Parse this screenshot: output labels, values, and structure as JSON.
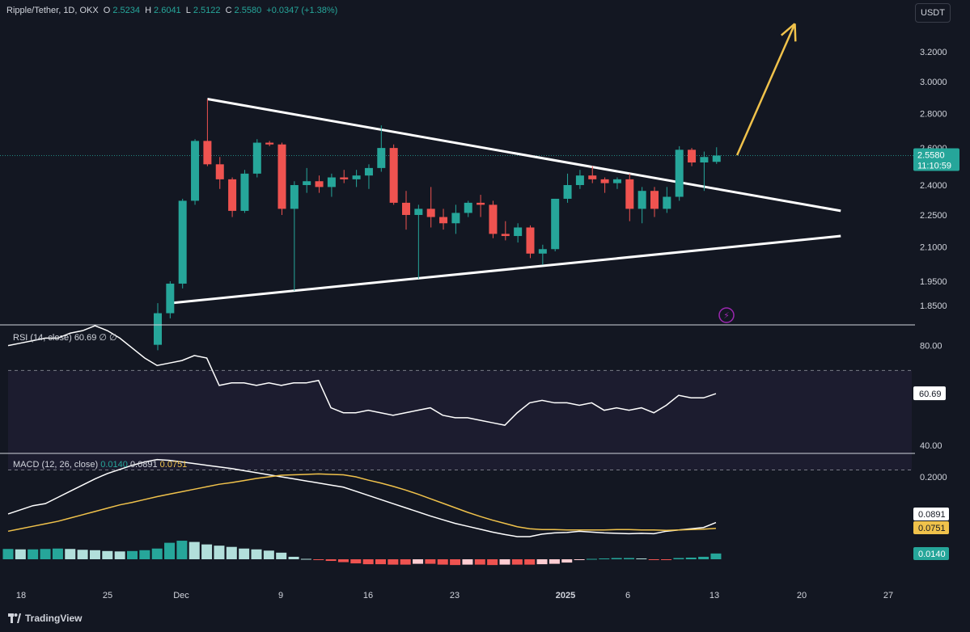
{
  "header": {
    "symbol": "Ripple/Tether, 1D, OKX",
    "o_label": "O",
    "o_value": "2.5234",
    "h_label": "H",
    "h_value": "2.6041",
    "l_label": "L",
    "l_value": "2.5122",
    "c_label": "C",
    "c_value": "2.5580",
    "change": "+0.0347 (+1.38%)"
  },
  "currency_button": "USDT",
  "price_tag": {
    "value": "2.5580",
    "countdown": "11:10:59"
  },
  "rsi": {
    "label": "RSI (14, close)",
    "value": "60.69",
    "extra": "∅ ∅",
    "tag": "60.69"
  },
  "macd": {
    "label": "MACD (12, 26, close)",
    "hist": "0.0140",
    "macd": "0.0891",
    "signal": "0.0751",
    "tags": [
      "0.0891",
      "0.0751",
      "0.0140"
    ]
  },
  "branding": "TradingView",
  "colors": {
    "up": "#26a69a",
    "down": "#ef5350",
    "bg": "#131722",
    "arrow": "#f0c24b",
    "macd_line": "#ffffff",
    "signal_line": "#f0c24b",
    "hist_up_strong": "#26a69a",
    "hist_up_weak": "#b2dfdb",
    "hist_down_strong": "#ef5350",
    "hist_down_weak": "#ffcdd2"
  },
  "chart_data": [
    {
      "type": "candlestick",
      "title": "Ripple/Tether, 1D, OKX",
      "x_ticks": [
        "18",
        "25",
        "Dec",
        "9",
        "16",
        "23",
        "2025",
        "6",
        "13",
        "20",
        "27"
      ],
      "y_ticks": [
        "3.2000",
        "3.0000",
        "2.8000",
        "2.6000",
        "2.4000",
        "2.2500",
        "2.1000",
        "1.9500",
        "1.8500"
      ],
      "y_log": true,
      "ohlc": [
        [
          1.7,
          1.86,
          1.68,
          1.82
        ],
        [
          1.82,
          1.95,
          1.8,
          1.94
        ],
        [
          1.94,
          2.33,
          1.92,
          2.32
        ],
        [
          2.32,
          2.65,
          2.3,
          2.64
        ],
        [
          2.64,
          2.89,
          2.5,
          2.51
        ],
        [
          2.51,
          2.55,
          2.38,
          2.43
        ],
        [
          2.43,
          2.44,
          2.24,
          2.27
        ],
        [
          2.27,
          2.48,
          2.26,
          2.46
        ],
        [
          2.46,
          2.65,
          2.44,
          2.63
        ],
        [
          2.63,
          2.64,
          2.61,
          2.62
        ],
        [
          2.62,
          2.63,
          2.25,
          2.28
        ],
        [
          2.28,
          2.42,
          1.91,
          2.4
        ],
        [
          2.4,
          2.49,
          2.36,
          2.42
        ],
        [
          2.42,
          2.45,
          2.36,
          2.39
        ],
        [
          2.39,
          2.46,
          2.34,
          2.44
        ],
        [
          2.44,
          2.48,
          2.41,
          2.43
        ],
        [
          2.43,
          2.48,
          2.39,
          2.45
        ],
        [
          2.45,
          2.51,
          2.38,
          2.49
        ],
        [
          2.49,
          2.73,
          2.47,
          2.6
        ],
        [
          2.6,
          2.62,
          2.3,
          2.31
        ],
        [
          2.31,
          2.37,
          2.18,
          2.25
        ],
        [
          2.25,
          2.3,
          1.96,
          2.28
        ],
        [
          2.28,
          2.39,
          2.19,
          2.24
        ],
        [
          2.24,
          2.28,
          2.18,
          2.21
        ],
        [
          2.21,
          2.3,
          2.16,
          2.26
        ],
        [
          2.26,
          2.32,
          2.24,
          2.31
        ],
        [
          2.31,
          2.35,
          2.24,
          2.3
        ],
        [
          2.3,
          2.32,
          2.14,
          2.16
        ],
        [
          2.16,
          2.22,
          2.13,
          2.15
        ],
        [
          2.15,
          2.21,
          2.12,
          2.19
        ],
        [
          2.19,
          2.2,
          2.05,
          2.07
        ],
        [
          2.07,
          2.11,
          2.02,
          2.09
        ],
        [
          2.09,
          2.33,
          2.08,
          2.33
        ],
        [
          2.33,
          2.46,
          2.31,
          2.4
        ],
        [
          2.4,
          2.48,
          2.38,
          2.45
        ],
        [
          2.45,
          2.5,
          2.41,
          2.43
        ],
        [
          2.43,
          2.44,
          2.36,
          2.41
        ],
        [
          2.41,
          2.44,
          2.38,
          2.43
        ],
        [
          2.43,
          2.46,
          2.22,
          2.28
        ],
        [
          2.28,
          2.39,
          2.21,
          2.37
        ],
        [
          2.37,
          2.39,
          2.24,
          2.28
        ],
        [
          2.28,
          2.39,
          2.26,
          2.34
        ],
        [
          2.34,
          2.61,
          2.32,
          2.59
        ],
        [
          2.59,
          2.6,
          2.5,
          2.52
        ],
        [
          2.52,
          2.58,
          2.37,
          2.55
        ],
        [
          2.5234,
          2.6041,
          2.5122,
          2.558
        ]
      ],
      "trendlines": [
        {
          "from": [
            4,
            2.89
          ],
          "to": [
            55,
            2.27
          ]
        },
        {
          "from": [
            1,
            1.86
          ],
          "to": [
            55,
            2.15
          ]
        }
      ],
      "projection_arrow": {
        "from": [
          46,
          2.56
        ],
        "to": [
          50,
          3.4
        ]
      }
    },
    {
      "type": "line",
      "title": "RSI (14, close)",
      "y_ticks": [
        "80.00",
        "40.00"
      ],
      "y_range": [
        37,
        88
      ],
      "bands": [
        70,
        30
      ],
      "values": [
        80,
        81,
        82,
        83,
        83,
        85,
        86,
        88,
        86,
        83,
        79,
        75,
        72,
        73,
        74,
        76,
        75,
        64,
        65,
        65,
        64,
        65,
        64,
        65,
        65,
        66,
        55,
        53,
        53,
        54,
        53,
        52,
        53,
        54,
        55,
        52,
        51,
        51,
        50,
        49,
        48,
        53,
        57,
        58,
        57,
        57,
        56,
        57,
        54,
        55,
        54,
        55,
        53,
        56,
        60,
        59,
        59,
        60.69
      ]
    },
    {
      "type": "line",
      "title": "MACD (12, 26, close)",
      "y_ticks": [
        "0.2000"
      ],
      "series": [
        {
          "name": "MACD",
          "values": [
            0.11,
            0.12,
            0.13,
            0.135,
            0.15,
            0.165,
            0.18,
            0.195,
            0.208,
            0.218,
            0.228,
            0.236,
            0.242,
            0.24,
            0.236,
            0.232,
            0.228,
            0.224,
            0.22,
            0.215,
            0.21,
            0.205,
            0.2,
            0.195,
            0.19,
            0.185,
            0.18,
            0.175,
            0.165,
            0.155,
            0.145,
            0.135,
            0.125,
            0.115,
            0.105,
            0.096,
            0.087,
            0.08,
            0.073,
            0.066,
            0.06,
            0.055,
            0.055,
            0.061,
            0.064,
            0.065,
            0.068,
            0.066,
            0.064,
            0.063,
            0.062,
            0.063,
            0.062,
            0.068,
            0.071,
            0.074,
            0.077,
            0.0891
          ]
        },
        {
          "name": "Signal",
          "values": [
            0.068,
            0.074,
            0.08,
            0.086,
            0.092,
            0.1,
            0.108,
            0.116,
            0.124,
            0.132,
            0.138,
            0.145,
            0.152,
            0.158,
            0.164,
            0.17,
            0.176,
            0.182,
            0.186,
            0.191,
            0.196,
            0.2,
            0.204,
            0.205,
            0.206,
            0.207,
            0.206,
            0.205,
            0.2,
            0.192,
            0.185,
            0.177,
            0.168,
            0.158,
            0.147,
            0.136,
            0.125,
            0.114,
            0.104,
            0.095,
            0.087,
            0.079,
            0.074,
            0.072,
            0.072,
            0.071,
            0.071,
            0.071,
            0.071,
            0.072,
            0.072,
            0.071,
            0.071,
            0.07,
            0.071,
            0.072,
            0.073,
            0.0751
          ]
        }
      ],
      "histogram": [
        0.025,
        0.024,
        0.024,
        0.025,
        0.026,
        0.025,
        0.023,
        0.022,
        0.02,
        0.019,
        0.02,
        0.022,
        0.026,
        0.04,
        0.045,
        0.042,
        0.036,
        0.033,
        0.03,
        0.026,
        0.024,
        0.021,
        0.016,
        0.006,
        0.001,
        -0.002,
        -0.004,
        -0.007,
        -0.01,
        -0.012,
        -0.012,
        -0.013,
        -0.013,
        -0.011,
        -0.011,
        -0.013,
        -0.014,
        -0.013,
        -0.013,
        -0.014,
        -0.013,
        -0.013,
        -0.013,
        -0.012,
        -0.011,
        -0.008,
        -0.002,
        0.001,
        0.002,
        0.003,
        0.003,
        0.002,
        -0.001,
        -0.002,
        0.003,
        0.004,
        0.006,
        0.014
      ]
    }
  ]
}
